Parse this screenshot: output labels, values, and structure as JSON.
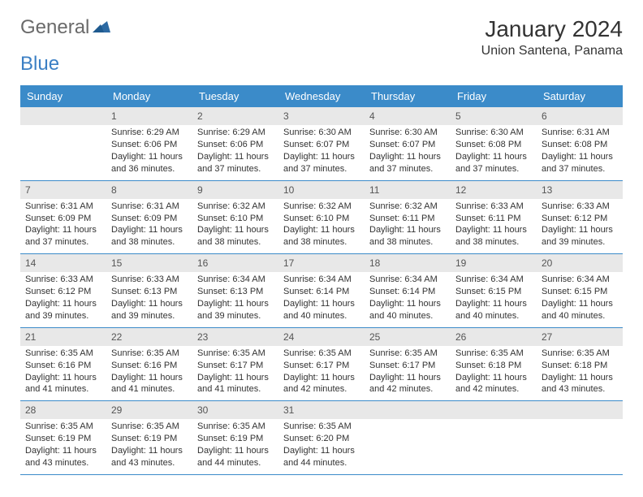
{
  "logo": {
    "text_general": "General",
    "text_blue": "Blue",
    "triangle_color": "#2d6aa3"
  },
  "header": {
    "month_year": "January 2024",
    "location": "Union Santena, Panama"
  },
  "colors": {
    "header_bar": "#3b8bc9",
    "daynum_bg": "#e8e8e8",
    "row_border": "#3b8bc9",
    "text": "#333333",
    "logo_gray": "#6a6a6a",
    "logo_blue": "#3b7fc4"
  },
  "weekdays": [
    "Sunday",
    "Monday",
    "Tuesday",
    "Wednesday",
    "Thursday",
    "Friday",
    "Saturday"
  ],
  "weeks": [
    [
      {
        "empty": true
      },
      {
        "n": "1",
        "sunrise": "6:29 AM",
        "sunset": "6:06 PM",
        "daylight": "11 hours and 36 minutes."
      },
      {
        "n": "2",
        "sunrise": "6:29 AM",
        "sunset": "6:06 PM",
        "daylight": "11 hours and 37 minutes."
      },
      {
        "n": "3",
        "sunrise": "6:30 AM",
        "sunset": "6:07 PM",
        "daylight": "11 hours and 37 minutes."
      },
      {
        "n": "4",
        "sunrise": "6:30 AM",
        "sunset": "6:07 PM",
        "daylight": "11 hours and 37 minutes."
      },
      {
        "n": "5",
        "sunrise": "6:30 AM",
        "sunset": "6:08 PM",
        "daylight": "11 hours and 37 minutes."
      },
      {
        "n": "6",
        "sunrise": "6:31 AM",
        "sunset": "6:08 PM",
        "daylight": "11 hours and 37 minutes."
      }
    ],
    [
      {
        "n": "7",
        "sunrise": "6:31 AM",
        "sunset": "6:09 PM",
        "daylight": "11 hours and 37 minutes."
      },
      {
        "n": "8",
        "sunrise": "6:31 AM",
        "sunset": "6:09 PM",
        "daylight": "11 hours and 38 minutes."
      },
      {
        "n": "9",
        "sunrise": "6:32 AM",
        "sunset": "6:10 PM",
        "daylight": "11 hours and 38 minutes."
      },
      {
        "n": "10",
        "sunrise": "6:32 AM",
        "sunset": "6:10 PM",
        "daylight": "11 hours and 38 minutes."
      },
      {
        "n": "11",
        "sunrise": "6:32 AM",
        "sunset": "6:11 PM",
        "daylight": "11 hours and 38 minutes."
      },
      {
        "n": "12",
        "sunrise": "6:33 AM",
        "sunset": "6:11 PM",
        "daylight": "11 hours and 38 minutes."
      },
      {
        "n": "13",
        "sunrise": "6:33 AM",
        "sunset": "6:12 PM",
        "daylight": "11 hours and 39 minutes."
      }
    ],
    [
      {
        "n": "14",
        "sunrise": "6:33 AM",
        "sunset": "6:12 PM",
        "daylight": "11 hours and 39 minutes."
      },
      {
        "n": "15",
        "sunrise": "6:33 AM",
        "sunset": "6:13 PM",
        "daylight": "11 hours and 39 minutes."
      },
      {
        "n": "16",
        "sunrise": "6:34 AM",
        "sunset": "6:13 PM",
        "daylight": "11 hours and 39 minutes."
      },
      {
        "n": "17",
        "sunrise": "6:34 AM",
        "sunset": "6:14 PM",
        "daylight": "11 hours and 40 minutes."
      },
      {
        "n": "18",
        "sunrise": "6:34 AM",
        "sunset": "6:14 PM",
        "daylight": "11 hours and 40 minutes."
      },
      {
        "n": "19",
        "sunrise": "6:34 AM",
        "sunset": "6:15 PM",
        "daylight": "11 hours and 40 minutes."
      },
      {
        "n": "20",
        "sunrise": "6:34 AM",
        "sunset": "6:15 PM",
        "daylight": "11 hours and 40 minutes."
      }
    ],
    [
      {
        "n": "21",
        "sunrise": "6:35 AM",
        "sunset": "6:16 PM",
        "daylight": "11 hours and 41 minutes."
      },
      {
        "n": "22",
        "sunrise": "6:35 AM",
        "sunset": "6:16 PM",
        "daylight": "11 hours and 41 minutes."
      },
      {
        "n": "23",
        "sunrise": "6:35 AM",
        "sunset": "6:17 PM",
        "daylight": "11 hours and 41 minutes."
      },
      {
        "n": "24",
        "sunrise": "6:35 AM",
        "sunset": "6:17 PM",
        "daylight": "11 hours and 42 minutes."
      },
      {
        "n": "25",
        "sunrise": "6:35 AM",
        "sunset": "6:17 PM",
        "daylight": "11 hours and 42 minutes."
      },
      {
        "n": "26",
        "sunrise": "6:35 AM",
        "sunset": "6:18 PM",
        "daylight": "11 hours and 42 minutes."
      },
      {
        "n": "27",
        "sunrise": "6:35 AM",
        "sunset": "6:18 PM",
        "daylight": "11 hours and 43 minutes."
      }
    ],
    [
      {
        "n": "28",
        "sunrise": "6:35 AM",
        "sunset": "6:19 PM",
        "daylight": "11 hours and 43 minutes."
      },
      {
        "n": "29",
        "sunrise": "6:35 AM",
        "sunset": "6:19 PM",
        "daylight": "11 hours and 43 minutes."
      },
      {
        "n": "30",
        "sunrise": "6:35 AM",
        "sunset": "6:19 PM",
        "daylight": "11 hours and 44 minutes."
      },
      {
        "n": "31",
        "sunrise": "6:35 AM",
        "sunset": "6:20 PM",
        "daylight": "11 hours and 44 minutes."
      },
      {
        "empty": true
      },
      {
        "empty": true
      },
      {
        "empty": true
      }
    ]
  ],
  "labels": {
    "sunrise_prefix": "Sunrise: ",
    "sunset_prefix": "Sunset: ",
    "daylight_prefix": "Daylight: "
  }
}
